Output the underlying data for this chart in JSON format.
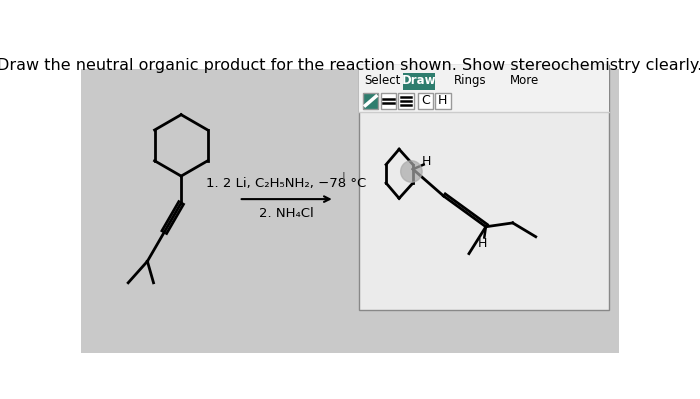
{
  "title": "Draw the neutral organic product for the reaction shown. Show stereochemistry clearly.",
  "reagent_line1": "1. 2 Li, C₂H₅NH₂, −78 °C",
  "reagent_line2": "2. NH₄Cl",
  "bg_top": "#ffffff",
  "bg_main": "#c8c8c8",
  "panel_bg": "#e8e8e8",
  "panel_border": "#aaaaaa",
  "draw_btn_color": "#2e7d6e",
  "toolbar_bg": "#f0f0f0",
  "title_fontsize": 11.5,
  "reagent_fontsize": 9.5
}
